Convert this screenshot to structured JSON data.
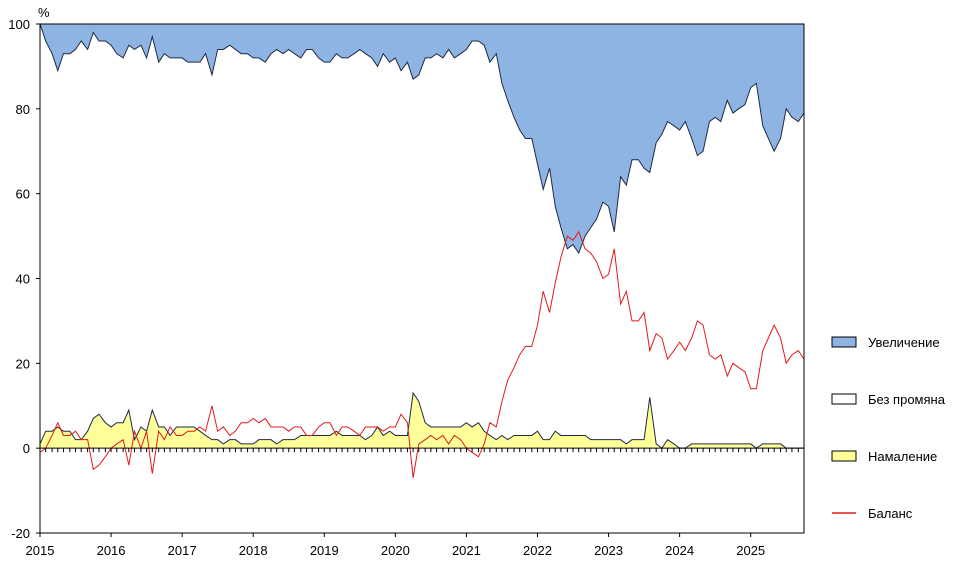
{
  "chart_data": {
    "type": "area",
    "y_unit": "%",
    "ylim": [
      -20,
      100
    ],
    "y_ticks": [
      -20,
      0,
      20,
      40,
      60,
      80,
      100
    ],
    "x_range": [
      2015.0,
      2025.75
    ],
    "x_ticks": [
      "2015",
      "2016",
      "2017",
      "2018",
      "2019",
      "2020",
      "2021",
      "2022",
      "2023",
      "2024",
      "2025"
    ],
    "legend_position": "right",
    "x_dates": [
      2015.0,
      2015.08,
      2015.17,
      2015.25,
      2015.33,
      2015.42,
      2015.5,
      2015.58,
      2015.67,
      2015.75,
      2015.83,
      2015.92,
      2016.0,
      2016.08,
      2016.17,
      2016.25,
      2016.33,
      2016.42,
      2016.5,
      2016.58,
      2016.67,
      2016.75,
      2016.83,
      2016.92,
      2017.0,
      2017.08,
      2017.17,
      2017.25,
      2017.33,
      2017.42,
      2017.5,
      2017.58,
      2017.67,
      2017.75,
      2017.83,
      2017.92,
      2018.0,
      2018.08,
      2018.17,
      2018.25,
      2018.33,
      2018.42,
      2018.5,
      2018.58,
      2018.67,
      2018.75,
      2018.83,
      2018.92,
      2019.0,
      2019.08,
      2019.17,
      2019.25,
      2019.33,
      2019.42,
      2019.5,
      2019.58,
      2019.67,
      2019.75,
      2019.83,
      2019.92,
      2020.0,
      2020.08,
      2020.17,
      2020.25,
      2020.33,
      2020.42,
      2020.5,
      2020.58,
      2020.67,
      2020.75,
      2020.83,
      2020.92,
      2021.0,
      2021.08,
      2021.17,
      2021.25,
      2021.33,
      2021.42,
      2021.5,
      2021.58,
      2021.67,
      2021.75,
      2021.83,
      2021.92,
      2022.0,
      2022.08,
      2022.17,
      2022.25,
      2022.33,
      2022.42,
      2022.5,
      2022.58,
      2022.67,
      2022.75,
      2022.83,
      2022.92,
      2023.0,
      2023.08,
      2023.17,
      2023.25,
      2023.33,
      2023.42,
      2023.5,
      2023.58,
      2023.67,
      2023.75,
      2023.83,
      2023.92,
      2024.0,
      2024.08,
      2024.17,
      2024.25,
      2024.33,
      2024.42,
      2024.5,
      2024.58,
      2024.67,
      2024.75,
      2024.83,
      2024.92,
      2025.0,
      2025.08,
      2025.17,
      2025.25,
      2025.33,
      2025.42,
      2025.5,
      2025.58,
      2025.67,
      2025.75
    ],
    "series": [
      {
        "name": "Увеличение",
        "color": "#8eb4e3",
        "note_values_are_percent_share": true,
        "values": [
          0.0,
          4.0,
          7.0,
          11.0,
          7.0,
          7.0,
          6.0,
          4.0,
          6.0,
          2.0,
          4.0,
          4.0,
          5.0,
          7.0,
          8.0,
          5.0,
          6.0,
          5.0,
          8.0,
          3.0,
          9.0,
          7.0,
          8.0,
          8.0,
          8.0,
          9.0,
          9.0,
          9.0,
          7.0,
          12.0,
          6.0,
          6.0,
          5.0,
          6.0,
          7.0,
          7.0,
          8.0,
          8.0,
          9.0,
          7.0,
          6.0,
          7.0,
          6.0,
          7.0,
          8.0,
          6.0,
          6.0,
          8.0,
          9.0,
          9.0,
          7.0,
          8.0,
          8.0,
          7.0,
          6.0,
          7.0,
          8.0,
          10.0,
          7.0,
          9.0,
          8.0,
          11.0,
          9.0,
          13.0,
          12.0,
          8.0,
          8.0,
          7.0,
          8.0,
          6.0,
          8.0,
          7.0,
          6.0,
          4.0,
          4.0,
          5.0,
          9.0,
          7.0,
          14.0,
          18.0,
          22.0,
          25.0,
          27.0,
          27.0,
          33.0,
          39.0,
          34.0,
          43.0,
          48.0,
          53.0,
          52.0,
          54.0,
          50.0,
          48.0,
          46.0,
          42.0,
          43.0,
          49.0,
          36.0,
          38.0,
          32.0,
          32.0,
          34.0,
          35.0,
          28.0,
          26.0,
          23.0,
          24.0,
          25.0,
          23.0,
          27.0,
          31.0,
          30.0,
          23.0,
          22.0,
          23.0,
          18.0,
          21.0,
          20.0,
          19.0,
          15.0,
          14.0,
          24.0,
          27.0,
          30.0,
          27.0,
          20.0,
          22.0,
          23.0,
          21.0
        ]
      },
      {
        "name": "Без промяна",
        "color": "#ffffff",
        "values": [
          99.0,
          92.0,
          89.0,
          84.0,
          89.0,
          89.0,
          92.0,
          94.0,
          90.0,
          91.0,
          88.0,
          90.0,
          90.0,
          87.0,
          86.0,
          86.0,
          92.0,
          90.0,
          88.0,
          88.0,
          86.0,
          88.0,
          89.0,
          87.0,
          87.0,
          86.0,
          86.0,
          87.0,
          90.0,
          86.0,
          92.0,
          93.0,
          93.0,
          92.0,
          92.0,
          92.0,
          91.0,
          90.0,
          89.0,
          91.0,
          93.0,
          91.0,
          92.0,
          91.0,
          89.0,
          91.0,
          91.0,
          89.0,
          88.0,
          88.0,
          89.0,
          89.0,
          89.0,
          90.0,
          91.0,
          91.0,
          89.0,
          85.0,
          90.0,
          87.0,
          89.0,
          86.0,
          88.0,
          74.0,
          77.0,
          86.0,
          87.0,
          88.0,
          87.0,
          89.0,
          87.0,
          88.0,
          88.0,
          91.0,
          90.0,
          91.0,
          88.0,
          91.0,
          83.0,
          80.0,
          75.0,
          72.0,
          70.0,
          70.0,
          63.0,
          59.0,
          64.0,
          53.0,
          49.0,
          44.0,
          45.0,
          43.0,
          47.0,
          50.0,
          52.0,
          56.0,
          55.0,
          49.0,
          62.0,
          61.0,
          66.0,
          66.0,
          64.0,
          53.0,
          71.0,
          74.0,
          75.0,
          75.0,
          75.0,
          77.0,
          72.0,
          68.0,
          69.0,
          76.0,
          77.0,
          76.0,
          81.0,
          78.0,
          79.0,
          80.0,
          84.0,
          86.0,
          75.0,
          72.0,
          69.0,
          72.0,
          80.0,
          78.0,
          77.0,
          79.0
        ]
      },
      {
        "name": "Намаление",
        "color": "#ffff99",
        "values": [
          1.0,
          4.0,
          4.0,
          5.0,
          4.0,
          4.0,
          2.0,
          2.0,
          4.0,
          7.0,
          8.0,
          6.0,
          5.0,
          6.0,
          6.0,
          9.0,
          2.0,
          5.0,
          4.0,
          9.0,
          5.0,
          5.0,
          3.0,
          5.0,
          5.0,
          5.0,
          5.0,
          4.0,
          3.0,
          2.0,
          2.0,
          1.0,
          2.0,
          2.0,
          1.0,
          1.0,
          1.0,
          2.0,
          2.0,
          2.0,
          1.0,
          2.0,
          2.0,
          2.0,
          3.0,
          3.0,
          3.0,
          3.0,
          3.0,
          3.0,
          4.0,
          3.0,
          3.0,
          3.0,
          3.0,
          2.0,
          3.0,
          5.0,
          3.0,
          4.0,
          3.0,
          3.0,
          3.0,
          13.0,
          11.0,
          6.0,
          5.0,
          5.0,
          5.0,
          5.0,
          5.0,
          5.0,
          6.0,
          5.0,
          6.0,
          4.0,
          3.0,
          2.0,
          3.0,
          2.0,
          3.0,
          3.0,
          3.0,
          3.0,
          4.0,
          2.0,
          2.0,
          4.0,
          3.0,
          3.0,
          3.0,
          3.0,
          3.0,
          2.0,
          2.0,
          2.0,
          2.0,
          2.0,
          2.0,
          1.0,
          2.0,
          2.0,
          2.0,
          12.0,
          1.0,
          0.0,
          2.0,
          1.0,
          0.0,
          0.0,
          1.0,
          1.0,
          1.0,
          1.0,
          1.0,
          1.0,
          1.0,
          1.0,
          1.0,
          1.0,
          1.0,
          0.0,
          1.0,
          1.0,
          1.0,
          1.0,
          0.0,
          0.0,
          0.0,
          0.0
        ]
      },
      {
        "name": "Баланс",
        "color": "#e31a1c",
        "values": [
          -1.0,
          0.0,
          3.0,
          6.0,
          3.0,
          3.0,
          4.0,
          2.0,
          2.0,
          -5.0,
          -4.0,
          -2.0,
          0.0,
          1.0,
          2.0,
          -4.0,
          4.0,
          0.0,
          4.0,
          -6.0,
          4.0,
          2.0,
          5.0,
          3.0,
          3.0,
          4.0,
          4.0,
          5.0,
          4.0,
          10.0,
          4.0,
          5.0,
          3.0,
          4.0,
          6.0,
          6.0,
          7.0,
          6.0,
          7.0,
          5.0,
          5.0,
          5.0,
          4.0,
          5.0,
          5.0,
          3.0,
          3.0,
          5.0,
          6.0,
          6.0,
          3.0,
          5.0,
          5.0,
          4.0,
          3.0,
          5.0,
          5.0,
          5.0,
          4.0,
          5.0,
          5.0,
          8.0,
          6.0,
          -7.0,
          1.0,
          2.0,
          3.0,
          2.0,
          3.0,
          1.0,
          3.0,
          2.0,
          0.0,
          -1.0,
          -2.0,
          1.0,
          6.0,
          5.0,
          11.0,
          16.0,
          19.0,
          22.0,
          24.0,
          24.0,
          29.0,
          37.0,
          32.0,
          39.0,
          45.0,
          50.0,
          49.0,
          51.0,
          47.0,
          46.0,
          44.0,
          40.0,
          41.0,
          47.0,
          34.0,
          37.0,
          30.0,
          30.0,
          32.0,
          23.0,
          27.0,
          26.0,
          21.0,
          23.0,
          25.0,
          23.0,
          26.0,
          30.0,
          29.0,
          22.0,
          21.0,
          22.0,
          17.0,
          20.0,
          19.0,
          18.0,
          14.0,
          14.0,
          23.0,
          26.0,
          29.0,
          26.0,
          20.0,
          22.0,
          23.0,
          21.0
        ]
      }
    ]
  }
}
